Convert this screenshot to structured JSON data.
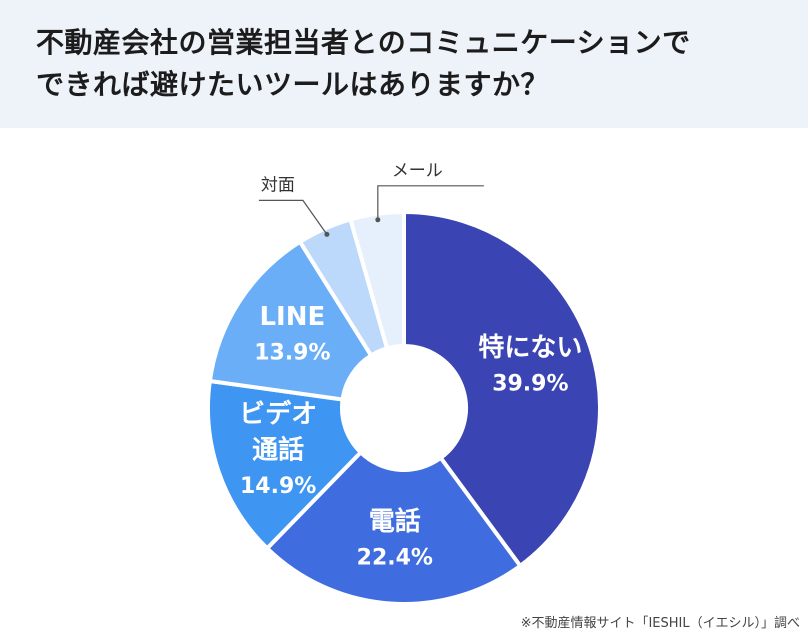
{
  "header": {
    "title_line1": "不動産会社の営業担当者とのコミュニケーションで",
    "title_line2": "できれば避けたいツールはありますか？"
  },
  "source": "※不動産情報サイト「IESHIL（イエシル）」調べ",
  "chart_data": {
    "type": "pie",
    "donut": true,
    "slices": [
      {
        "label": "特にない",
        "value": 39.9,
        "value_label": "39.9%",
        "color": "#3a44b2"
      },
      {
        "label": "電話",
        "value": 22.4,
        "value_label": "22.4%",
        "color": "#3f6de0"
      },
      {
        "label": "ビデオ\n通話",
        "value": 14.9,
        "value_label": "14.9%",
        "color": "#3e95f2"
      },
      {
        "label": "LINE",
        "value": 13.9,
        "value_label": "13.9%",
        "color": "#6aaef8"
      },
      {
        "label": "対面",
        "value": 4.5,
        "value_label": "",
        "color": "#bcd9fb"
      },
      {
        "label": "メール",
        "value": 4.4,
        "value_label": "",
        "color": "#e6f0fd"
      }
    ]
  }
}
